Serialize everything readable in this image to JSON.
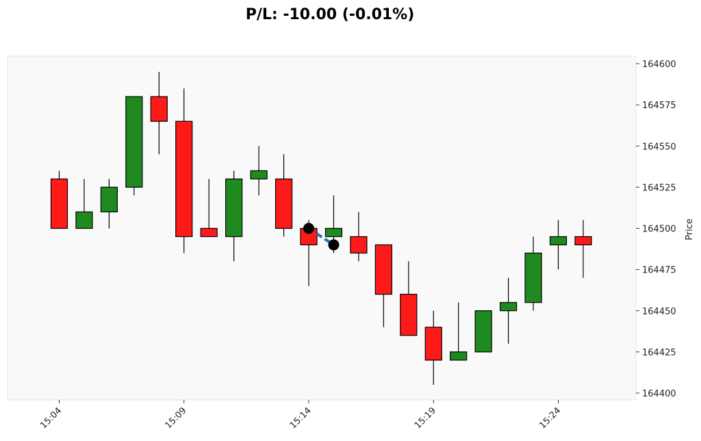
{
  "chart_data": {
    "type": "candlestick",
    "title": "P/L: -10.00 (-0.01%)",
    "ylabel": "Price",
    "ylim": [
      164400,
      164600
    ],
    "yticks": [
      164400,
      164425,
      164450,
      164475,
      164500,
      164525,
      164550,
      164575,
      164600
    ],
    "xticks": [
      "15:04",
      "15:09",
      "15:14",
      "15:19",
      "15:24"
    ],
    "grid": false,
    "colors": {
      "up": "#1f8a1f",
      "down": "#ff1a1a",
      "trade_line": "#1f77b4",
      "marker": "#000000",
      "plot_bg": "#f9f9f9"
    },
    "candles": [
      {
        "time": "15:04",
        "open": 164530,
        "high": 164535,
        "low": 164500,
        "close": 164500
      },
      {
        "time": "15:05",
        "open": 164500,
        "high": 164530,
        "low": 164500,
        "close": 164510
      },
      {
        "time": "15:06",
        "open": 164510,
        "high": 164530,
        "low": 164500,
        "close": 164525
      },
      {
        "time": "15:07",
        "open": 164525,
        "high": 164580,
        "low": 164520,
        "close": 164580
      },
      {
        "time": "15:08",
        "open": 164580,
        "high": 164595,
        "low": 164545,
        "close": 164565
      },
      {
        "time": "15:09",
        "open": 164565,
        "high": 164585,
        "low": 164485,
        "close": 164495
      },
      {
        "time": "15:10",
        "open": 164500,
        "high": 164530,
        "low": 164495,
        "close": 164495
      },
      {
        "time": "15:11",
        "open": 164495,
        "high": 164535,
        "low": 164480,
        "close": 164530
      },
      {
        "time": "15:12",
        "open": 164530,
        "high": 164550,
        "low": 164520,
        "close": 164535
      },
      {
        "time": "15:13",
        "open": 164530,
        "high": 164545,
        "low": 164495,
        "close": 164500
      },
      {
        "time": "15:14",
        "open": 164500,
        "high": 164505,
        "low": 164465,
        "close": 164490
      },
      {
        "time": "15:15",
        "open": 164495,
        "high": 164520,
        "low": 164485,
        "close": 164500
      },
      {
        "time": "15:16",
        "open": 164495,
        "high": 164510,
        "low": 164480,
        "close": 164485
      },
      {
        "time": "15:17",
        "open": 164490,
        "high": 164490,
        "low": 164440,
        "close": 164460
      },
      {
        "time": "15:18",
        "open": 164460,
        "high": 164480,
        "low": 164435,
        "close": 164435
      },
      {
        "time": "15:19",
        "open": 164440,
        "high": 164450,
        "low": 164405,
        "close": 164420
      },
      {
        "time": "15:20",
        "open": 164420,
        "high": 164455,
        "low": 164420,
        "close": 164425
      },
      {
        "time": "15:21",
        "open": 164425,
        "high": 164450,
        "low": 164425,
        "close": 164450
      },
      {
        "time": "15:22",
        "open": 164450,
        "high": 164470,
        "low": 164430,
        "close": 164455
      },
      {
        "time": "15:23",
        "open": 164455,
        "high": 164495,
        "low": 164450,
        "close": 164485
      },
      {
        "time": "15:24",
        "open": 164490,
        "high": 164505,
        "low": 164475,
        "close": 164495
      },
      {
        "time": "15:25",
        "open": 164495,
        "high": 164505,
        "low": 164470,
        "close": 164490
      }
    ],
    "trade": {
      "entry": {
        "time": "15:14",
        "price": 164500
      },
      "exit": {
        "time": "15:15",
        "price": 164490
      }
    }
  }
}
